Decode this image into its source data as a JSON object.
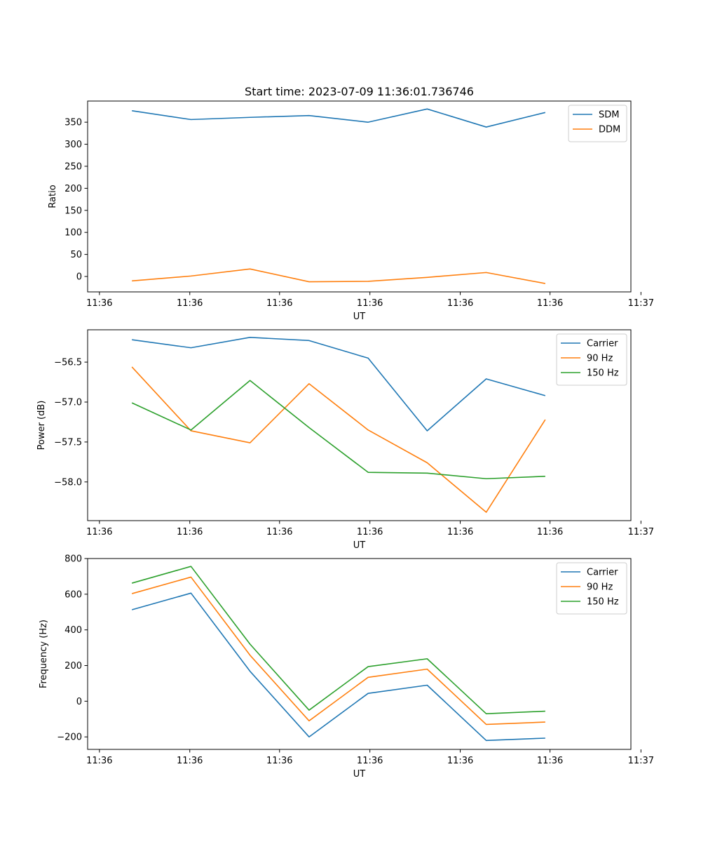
{
  "figure": {
    "title": "Start time: 2023-07-09 11:36:01.736746"
  },
  "chart_data": [
    {
      "type": "line",
      "title": "Start time: 2023-07-09 11:36:01.736746",
      "xlabel": "UT",
      "ylabel": "Ratio",
      "x": [
        1,
        2,
        3,
        4,
        5,
        6,
        7,
        8
      ],
      "xlim": [
        0.25,
        9.45
      ],
      "xticks": [
        0.45,
        1.98,
        3.5,
        5.03,
        6.56,
        8.08,
        9.62
      ],
      "xtick_labels": [
        "11:36",
        "11:36",
        "11:36",
        "11:36",
        "11:36",
        "11:36",
        "11:37"
      ],
      "ylim": [
        -35,
        398
      ],
      "yticks": [
        0,
        50,
        100,
        150,
        200,
        250,
        300,
        350
      ],
      "ytick_labels": [
        "0",
        "50",
        "100",
        "150",
        "200",
        "250",
        "300",
        "350"
      ],
      "legend": "top-right",
      "series": [
        {
          "name": "SDM",
          "color": "#1f77b4",
          "values": [
            376,
            356,
            361,
            365,
            350,
            380,
            339,
            372
          ]
        },
        {
          "name": "DDM",
          "color": "#ff7f0e",
          "values": [
            -10,
            1,
            17,
            -12,
            -11,
            -2,
            9,
            -16
          ]
        }
      ]
    },
    {
      "type": "line",
      "title": "",
      "xlabel": "UT",
      "ylabel": "Power (dB)",
      "x": [
        1,
        2,
        3,
        4,
        5,
        6,
        7,
        8
      ],
      "xlim": [
        0.25,
        9.45
      ],
      "xticks": [
        0.45,
        1.98,
        3.5,
        5.03,
        6.56,
        8.08,
        9.62
      ],
      "xtick_labels": [
        "11:36",
        "11:36",
        "11:36",
        "11:36",
        "11:36",
        "11:36",
        "11:37"
      ],
      "ylim": [
        -58.485,
        -56.095
      ],
      "yticks": [
        -58.0,
        -57.5,
        -57.0,
        -56.5
      ],
      "ytick_labels": [
        "−58.0",
        "−57.5",
        "−57.0",
        "−56.5"
      ],
      "legend": "top-right",
      "series": [
        {
          "name": "Carrier",
          "color": "#1f77b4",
          "values": [
            -56.22,
            -56.32,
            -56.19,
            -56.23,
            -56.45,
            -57.36,
            -56.71,
            -56.92
          ]
        },
        {
          "name": "90 Hz",
          "color": "#ff7f0e",
          "values": [
            -56.56,
            -57.36,
            -57.51,
            -56.77,
            -57.35,
            -57.76,
            -58.38,
            -57.22
          ]
        },
        {
          "name": "150 Hz",
          "color": "#2ca02c",
          "values": [
            -57.01,
            -57.35,
            -56.73,
            -57.32,
            -57.88,
            -57.89,
            -57.96,
            -57.93
          ]
        }
      ]
    },
    {
      "type": "line",
      "title": "",
      "xlabel": "UT",
      "ylabel": "Frequency (Hz)",
      "x": [
        1,
        2,
        3,
        4,
        5,
        6,
        7,
        8
      ],
      "xlim": [
        0.25,
        9.45
      ],
      "xticks": [
        0.45,
        1.98,
        3.5,
        5.03,
        6.56,
        8.08,
        9.62
      ],
      "xtick_labels": [
        "11:36",
        "11:36",
        "11:36",
        "11:36",
        "11:36",
        "11:36",
        "11:37"
      ],
      "ylim": [
        -270,
        800
      ],
      "yticks": [
        -200,
        0,
        200,
        400,
        600,
        800
      ],
      "ytick_labels": [
        "−200",
        "0",
        "200",
        "400",
        "600",
        "800"
      ],
      "legend": "top-right",
      "series": [
        {
          "name": "Carrier",
          "color": "#1f77b4",
          "values": [
            513,
            606,
            168,
            -200,
            44,
            90,
            -220,
            -207
          ]
        },
        {
          "name": "90 Hz",
          "color": "#ff7f0e",
          "values": [
            603,
            696,
            258,
            -110,
            134,
            180,
            -130,
            -117
          ]
        },
        {
          "name": "150 Hz",
          "color": "#2ca02c",
          "values": [
            662,
            756,
            320,
            -50,
            194,
            238,
            -70,
            -56
          ]
        }
      ]
    }
  ]
}
